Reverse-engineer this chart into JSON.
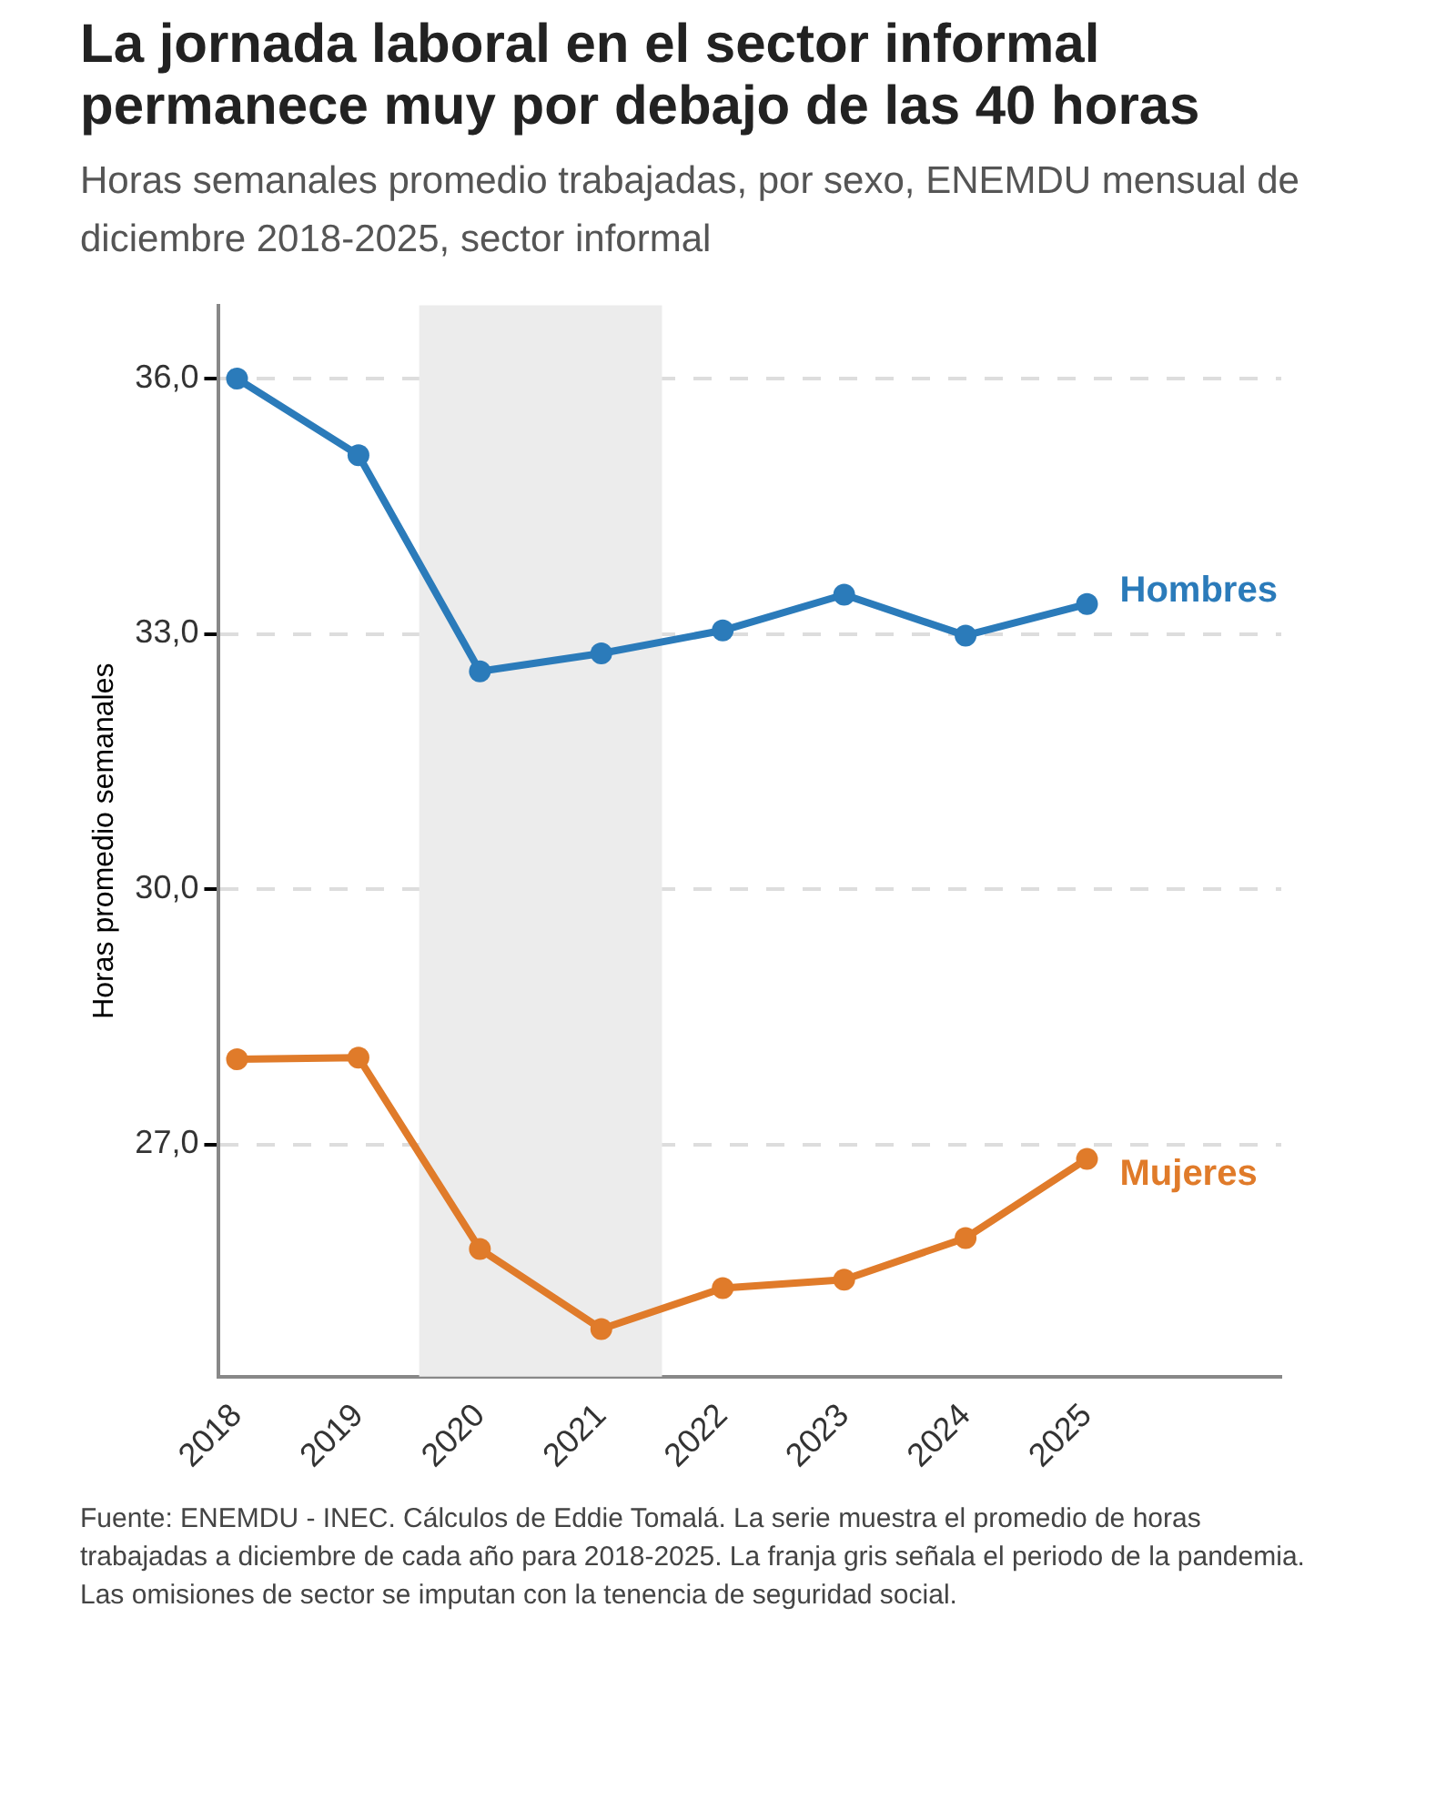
{
  "chart_data": {
    "type": "line",
    "title": "La jornada laboral en el sector informal permanece muy por debajo de las 40 horas",
    "subtitle": "Horas semanales promedio trabajadas, por sexo, ENEMDU mensual de diciembre 2018-2025, sector informal",
    "ylabel": "Horas promedio semanales",
    "x": [
      2018,
      2019,
      2020,
      2021,
      2022,
      2023,
      2024,
      2025
    ],
    "xlim": [
      2017.85,
      2026.6
    ],
    "xticks": [
      2018,
      2019,
      2020,
      2021,
      2022,
      2023,
      2024,
      2025
    ],
    "ylim": [
      24.27,
      36.86
    ],
    "yticks": [
      {
        "value": 27,
        "label": "27,0"
      },
      {
        "value": 30,
        "label": "30,0"
      },
      {
        "value": 33,
        "label": "33,0"
      },
      {
        "value": 36,
        "label": "36,0"
      }
    ],
    "series": [
      {
        "name": "Hombres",
        "color": "#2b7bba",
        "values": [
          36.0,
          35.1,
          32.56,
          32.77,
          33.04,
          33.46,
          32.98,
          33.35
        ]
      },
      {
        "name": "Mujeres",
        "color": "#e07b2a",
        "values": [
          28.0,
          28.02,
          25.77,
          24.83,
          25.31,
          25.41,
          25.9,
          26.83
        ]
      }
    ],
    "bands": [
      {
        "axis": "x",
        "from": 2019.5,
        "to": 2021.5,
        "color": "#ececec"
      }
    ],
    "grid": "y",
    "legend": false,
    "marker": "circle",
    "line_style": "solid",
    "annotations": [
      "Fuente: ENEMDU - INEC. Cálculos de Eddie Tomalá. La serie muestra el promedio de horas trabajadas a diciembre de cada año para 2018-2025. La franja gris señala el periodo de la pandemia. Las omisiones de sector se imputan con la tenencia de seguridad social."
    ]
  }
}
